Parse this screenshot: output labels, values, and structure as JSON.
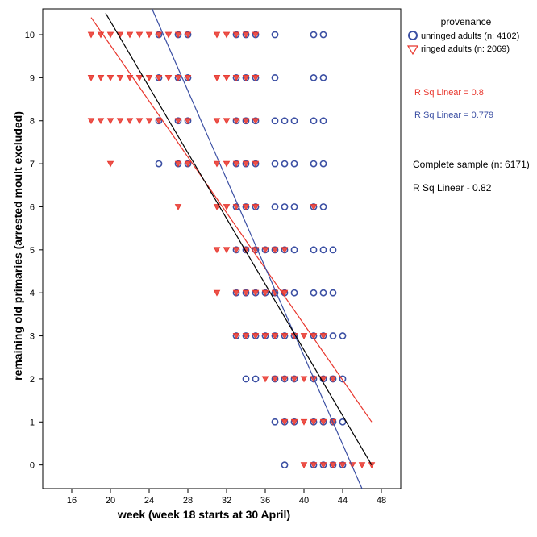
{
  "chart_data": {
    "type": "scatter",
    "xlabel": "week (week 18 starts at 30 April)",
    "ylabel": "remaining old primaries (arrested moult excluded)",
    "xlim": [
      13,
      50
    ],
    "ylim": [
      -0.55,
      10.6
    ],
    "x_ticks": [
      16,
      20,
      24,
      28,
      32,
      36,
      40,
      44,
      48
    ],
    "y_ticks": [
      0,
      1,
      2,
      3,
      4,
      5,
      6,
      7,
      8,
      9,
      10
    ],
    "grid": false,
    "legend": {
      "title": "provenance",
      "placement": "top-right",
      "entries": [
        {
          "label": "unringed adults (n: 4102)",
          "marker": "circle",
          "color": "#3b4fa3"
        },
        {
          "label": "ringed adults (n: 2069)",
          "marker": "triangle-down",
          "color": "#e8352c"
        }
      ]
    },
    "annotations": [
      {
        "text": "R Sq Linear = 0.8",
        "color": "#e8352c"
      },
      {
        "text": "R Sq Linear = 0.779",
        "color": "#3b4fa3"
      },
      {
        "text": "Complete sample (n: 6171)",
        "color": "#000000"
      },
      {
        "text": "R Sq Linear - 0.82",
        "color": "#000000"
      }
    ],
    "series": [
      {
        "name": "unringed adults (n: 4102)",
        "marker": "circle",
        "color": "#3b4fa3",
        "points": [
          [
            25,
            10
          ],
          [
            27,
            10
          ],
          [
            28,
            10
          ],
          [
            33,
            10
          ],
          [
            34,
            10
          ],
          [
            35,
            10
          ],
          [
            37,
            10
          ],
          [
            41,
            10
          ],
          [
            42,
            10
          ],
          [
            25,
            9
          ],
          [
            27,
            9
          ],
          [
            28,
            9
          ],
          [
            33,
            9
          ],
          [
            34,
            9
          ],
          [
            35,
            9
          ],
          [
            37,
            9
          ],
          [
            41,
            9
          ],
          [
            42,
            9
          ],
          [
            25,
            8
          ],
          [
            27,
            8
          ],
          [
            28,
            8
          ],
          [
            33,
            8
          ],
          [
            34,
            8
          ],
          [
            35,
            8
          ],
          [
            37,
            8
          ],
          [
            38,
            8
          ],
          [
            39,
            8
          ],
          [
            41,
            8
          ],
          [
            42,
            8
          ],
          [
            25,
            7
          ],
          [
            27,
            7
          ],
          [
            28,
            7
          ],
          [
            33,
            7
          ],
          [
            34,
            7
          ],
          [
            35,
            7
          ],
          [
            37,
            7
          ],
          [
            38,
            7
          ],
          [
            39,
            7
          ],
          [
            41,
            7
          ],
          [
            42,
            7
          ],
          [
            33,
            6
          ],
          [
            34,
            6
          ],
          [
            35,
            6
          ],
          [
            37,
            6
          ],
          [
            38,
            6
          ],
          [
            39,
            6
          ],
          [
            41,
            6
          ],
          [
            42,
            6
          ],
          [
            33,
            5
          ],
          [
            34,
            5
          ],
          [
            35,
            5
          ],
          [
            36,
            5
          ],
          [
            37,
            5
          ],
          [
            38,
            5
          ],
          [
            39,
            5
          ],
          [
            41,
            5
          ],
          [
            42,
            5
          ],
          [
            43,
            5
          ],
          [
            33,
            4
          ],
          [
            34,
            4
          ],
          [
            35,
            4
          ],
          [
            36,
            4
          ],
          [
            37,
            4
          ],
          [
            38,
            4
          ],
          [
            39,
            4
          ],
          [
            41,
            4
          ],
          [
            42,
            4
          ],
          [
            43,
            4
          ],
          [
            33,
            3
          ],
          [
            34,
            3
          ],
          [
            35,
            3
          ],
          [
            36,
            3
          ],
          [
            37,
            3
          ],
          [
            38,
            3
          ],
          [
            39,
            3
          ],
          [
            41,
            3
          ],
          [
            42,
            3
          ],
          [
            43,
            3
          ],
          [
            44,
            3
          ],
          [
            34,
            2
          ],
          [
            35,
            2
          ],
          [
            37,
            2
          ],
          [
            38,
            2
          ],
          [
            39,
            2
          ],
          [
            41,
            2
          ],
          [
            42,
            2
          ],
          [
            43,
            2
          ],
          [
            44,
            2
          ],
          [
            37,
            1
          ],
          [
            38,
            1
          ],
          [
            39,
            1
          ],
          [
            41,
            1
          ],
          [
            42,
            1
          ],
          [
            43,
            1
          ],
          [
            44,
            1
          ],
          [
            38,
            0
          ],
          [
            41,
            0
          ],
          [
            42,
            0
          ],
          [
            43,
            0
          ],
          [
            44,
            0
          ]
        ]
      },
      {
        "name": "ringed adults (n: 2069)",
        "marker": "triangle-down",
        "color": "#e8352c",
        "points": [
          [
            18,
            10
          ],
          [
            19,
            10
          ],
          [
            20,
            10
          ],
          [
            21,
            10
          ],
          [
            22,
            10
          ],
          [
            23,
            10
          ],
          [
            24,
            10
          ],
          [
            25,
            10
          ],
          [
            26,
            10
          ],
          [
            27,
            10
          ],
          [
            28,
            10
          ],
          [
            31,
            10
          ],
          [
            32,
            10
          ],
          [
            33,
            10
          ],
          [
            34,
            10
          ],
          [
            35,
            10
          ],
          [
            18,
            9
          ],
          [
            19,
            9
          ],
          [
            20,
            9
          ],
          [
            21,
            9
          ],
          [
            22,
            9
          ],
          [
            23,
            9
          ],
          [
            24,
            9
          ],
          [
            25,
            9
          ],
          [
            26,
            9
          ],
          [
            27,
            9
          ],
          [
            28,
            9
          ],
          [
            31,
            9
          ],
          [
            32,
            9
          ],
          [
            33,
            9
          ],
          [
            34,
            9
          ],
          [
            35,
            9
          ],
          [
            18,
            8
          ],
          [
            19,
            8
          ],
          [
            20,
            8
          ],
          [
            21,
            8
          ],
          [
            22,
            8
          ],
          [
            23,
            8
          ],
          [
            24,
            8
          ],
          [
            25,
            8
          ],
          [
            27,
            8
          ],
          [
            28,
            8
          ],
          [
            31,
            8
          ],
          [
            32,
            8
          ],
          [
            33,
            8
          ],
          [
            34,
            8
          ],
          [
            35,
            8
          ],
          [
            20,
            7
          ],
          [
            27,
            7
          ],
          [
            28,
            7
          ],
          [
            31,
            7
          ],
          [
            32,
            7
          ],
          [
            33,
            7
          ],
          [
            34,
            7
          ],
          [
            35,
            7
          ],
          [
            27,
            6
          ],
          [
            31,
            6
          ],
          [
            32,
            6
          ],
          [
            33,
            6
          ],
          [
            34,
            6
          ],
          [
            35,
            6
          ],
          [
            41,
            6
          ],
          [
            31,
            5
          ],
          [
            32,
            5
          ],
          [
            33,
            5
          ],
          [
            34,
            5
          ],
          [
            35,
            5
          ],
          [
            36,
            5
          ],
          [
            37,
            5
          ],
          [
            38,
            5
          ],
          [
            31,
            4
          ],
          [
            33,
            4
          ],
          [
            34,
            4
          ],
          [
            35,
            4
          ],
          [
            36,
            4
          ],
          [
            37,
            4
          ],
          [
            38,
            4
          ],
          [
            33,
            3
          ],
          [
            34,
            3
          ],
          [
            35,
            3
          ],
          [
            36,
            3
          ],
          [
            37,
            3
          ],
          [
            38,
            3
          ],
          [
            39,
            3
          ],
          [
            40,
            3
          ],
          [
            41,
            3
          ],
          [
            42,
            3
          ],
          [
            36,
            2
          ],
          [
            37,
            2
          ],
          [
            38,
            2
          ],
          [
            39,
            2
          ],
          [
            40,
            2
          ],
          [
            41,
            2
          ],
          [
            42,
            2
          ],
          [
            43,
            2
          ],
          [
            38,
            1
          ],
          [
            39,
            1
          ],
          [
            40,
            1
          ],
          [
            41,
            1
          ],
          [
            42,
            1
          ],
          [
            43,
            1
          ],
          [
            40,
            0
          ],
          [
            41,
            0
          ],
          [
            42,
            0
          ],
          [
            43,
            0
          ],
          [
            44,
            0
          ],
          [
            45,
            0
          ],
          [
            46,
            0
          ],
          [
            47,
            0
          ]
        ]
      }
    ],
    "fit_lines": [
      {
        "name": "ringed fit",
        "color": "#e8352c",
        "from": [
          18,
          10.4
        ],
        "to": [
          47,
          1.0
        ]
      },
      {
        "name": "unringed fit",
        "color": "#3b4fa3",
        "from": [
          24.3,
          10.6
        ],
        "to": [
          46,
          -0.55
        ]
      },
      {
        "name": "complete sample fit",
        "color": "#000000",
        "from": [
          19.5,
          10.5
        ],
        "to": [
          47,
          0.0
        ]
      }
    ]
  }
}
